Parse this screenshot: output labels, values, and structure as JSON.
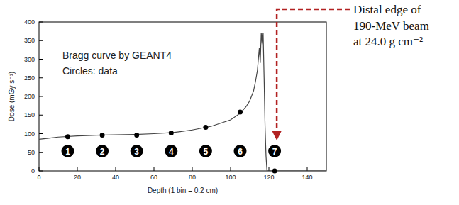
{
  "chart_data": {
    "type": "line",
    "x_label": "Depth (1 bin = 0.2 cm)",
    "y_label": "Dose (mGy s⁻¹)",
    "annotations": [
      "Bragg curve by GEANT4",
      "Circles: data"
    ],
    "callout": [
      "Distal edge of",
      "190-MeV beam",
      "at 24.0 g cm⁻²"
    ],
    "xlim": [
      0,
      150
    ],
    "xticks": [
      0,
      20,
      40,
      60,
      80,
      100,
      120,
      140
    ],
    "ylim": [
      0,
      400
    ],
    "yticks": [
      0,
      50,
      100,
      150,
      200,
      250,
      300,
      350,
      400
    ],
    "grid": false,
    "series": [
      {
        "type": "line",
        "color": "#444444",
        "line_style": "solid",
        "x": [
          0,
          5,
          10,
          20,
          30,
          40,
          50,
          60,
          70,
          80,
          90,
          100,
          105,
          108,
          110,
          112,
          113,
          114,
          115,
          115.5,
          116,
          116.5,
          117,
          117.5,
          118,
          118.5,
          119,
          150
        ],
        "values": [
          85,
          88,
          91,
          94,
          96,
          97,
          98,
          100,
          103,
          110,
          120,
          137,
          155,
          172,
          188,
          215,
          240,
          270,
          330,
          290,
          370,
          340,
          370,
          250,
          120,
          40,
          0,
          0
        ]
      },
      {
        "type": "scatter",
        "color": "#000000",
        "marker": "circle",
        "x": [
          15,
          33,
          51,
          69,
          87,
          105,
          123
        ],
        "values": [
          92,
          96,
          96,
          102,
          117,
          158,
          0
        ],
        "point_labels": [
          "1",
          "2",
          "3",
          "4",
          "5",
          "6",
          "7"
        ]
      }
    ]
  }
}
